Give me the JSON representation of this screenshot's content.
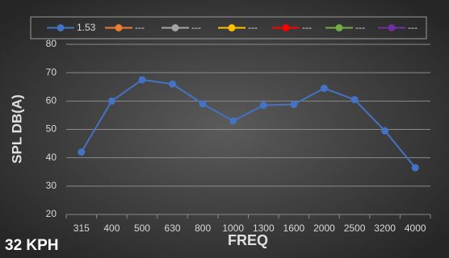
{
  "chart_data": {
    "type": "line",
    "categories": [
      "315",
      "400",
      "500",
      "630",
      "800",
      "1000",
      "1300",
      "1600",
      "2000",
      "2500",
      "3200",
      "4000"
    ],
    "series": [
      {
        "name": "1.53",
        "color": "#4472c4",
        "values": [
          42,
          60,
          67.5,
          66,
          59,
          53,
          58.5,
          58.8,
          64.5,
          60.5,
          49.5,
          36.5
        ]
      },
      {
        "name": "---",
        "color": "#ed7d31",
        "values": [
          null,
          null,
          null,
          null,
          null,
          null,
          null,
          null,
          null,
          null,
          null,
          null
        ]
      },
      {
        "name": "---",
        "color": "#a5a5a5",
        "values": [
          null,
          null,
          null,
          null,
          null,
          null,
          null,
          null,
          null,
          null,
          null,
          null
        ]
      },
      {
        "name": "---",
        "color": "#ffc000",
        "values": [
          null,
          null,
          null,
          null,
          null,
          null,
          null,
          null,
          null,
          null,
          null,
          null
        ]
      },
      {
        "name": "---",
        "color": "#ff0000",
        "values": [
          null,
          null,
          null,
          null,
          null,
          null,
          null,
          null,
          null,
          null,
          null,
          null
        ]
      },
      {
        "name": "---",
        "color": "#70ad47",
        "values": [
          null,
          null,
          null,
          null,
          null,
          null,
          null,
          null,
          null,
          null,
          null,
          null
        ]
      },
      {
        "name": "---",
        "color": "#7030a0",
        "values": [
          null,
          null,
          null,
          null,
          null,
          null,
          null,
          null,
          null,
          null,
          null,
          null
        ]
      }
    ],
    "ylim": [
      20,
      80
    ],
    "yticks": [
      20,
      30,
      40,
      50,
      60,
      70,
      80
    ],
    "grid": true,
    "xlabel": "FREQ",
    "ylabel": "SPL DB(A)",
    "annotation": "32 KPH",
    "legend": "top"
  }
}
